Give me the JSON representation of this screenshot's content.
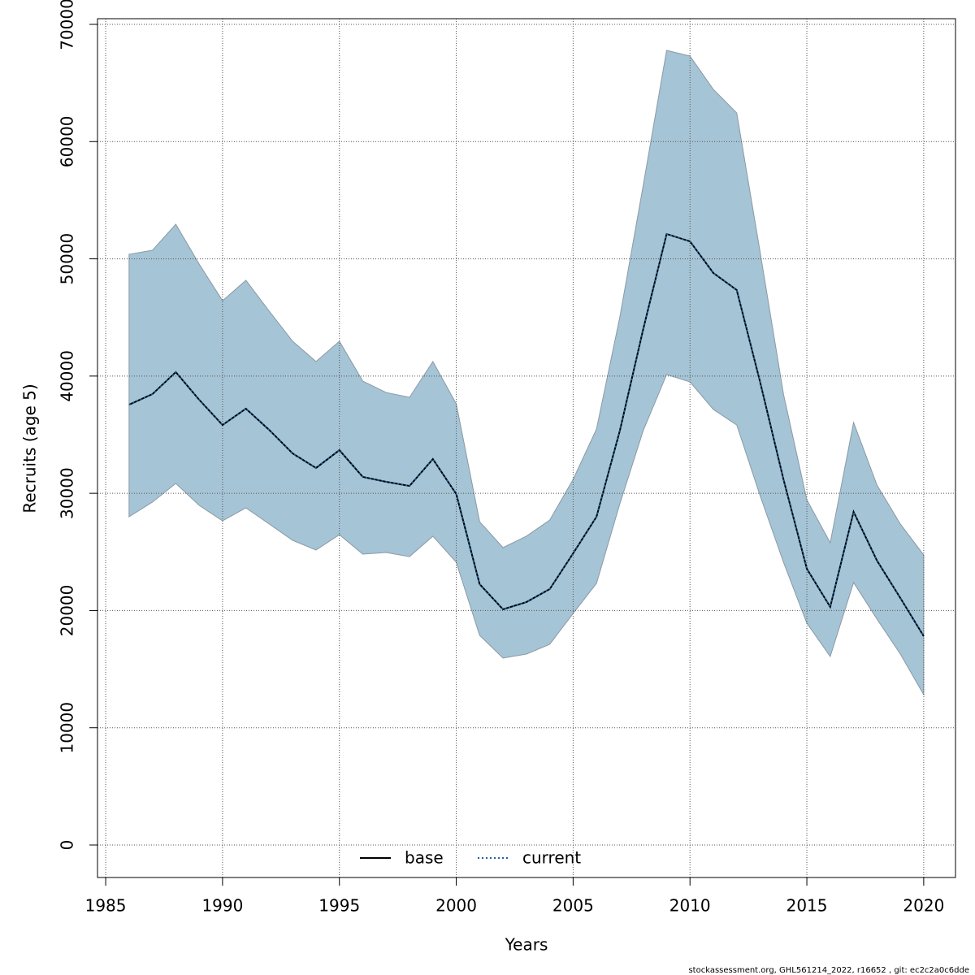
{
  "chart_data": {
    "type": "line",
    "xlabel": "Years",
    "ylabel": "Recruits (age 5)",
    "x": [
      1986,
      1987,
      1988,
      1989,
      1990,
      1991,
      1992,
      1993,
      1994,
      1995,
      1996,
      1997,
      1998,
      1999,
      2000,
      2001,
      2002,
      2003,
      2004,
      2005,
      2006,
      2007,
      2008,
      2009,
      2010,
      2011,
      2012,
      2013,
      2014,
      2015,
      2016,
      2017,
      2018,
      2019,
      2020
    ],
    "band": {
      "color": "#a5c4d5",
      "upper": [
        50390,
        50730,
        52950,
        49550,
        46430,
        48170,
        45530,
        42970,
        41240,
        42970,
        39570,
        38600,
        38190,
        41240,
        37630,
        27580,
        25370,
        26340,
        27720,
        31190,
        35480,
        45050,
        56280,
        67780,
        67300,
        64450,
        62450,
        50590,
        38460,
        29450,
        25780,
        36040,
        30700,
        27380,
        24740
      ],
      "lower": [
        28000,
        29250,
        30840,
        28970,
        27650,
        28760,
        27380,
        25990,
        25160,
        26470,
        24810,
        24950,
        24600,
        26340,
        24120,
        17880,
        15940,
        16290,
        17120,
        19750,
        22320,
        29110,
        35350,
        40130,
        39500,
        37150,
        35830,
        29800,
        24120,
        18920,
        16080,
        22390,
        19270,
        16290,
        12820
      ]
    },
    "series": [
      {
        "name": "base",
        "color": "#000000",
        "dash": "solid",
        "values": [
          37560,
          38460,
          40340,
          37980,
          35830,
          37220,
          35400,
          33400,
          32160,
          33680,
          31400,
          30980,
          30630,
          32920,
          29940,
          22250,
          20100,
          20720,
          21830,
          24880,
          28000,
          35350,
          44010,
          52120,
          51490,
          48790,
          47340,
          39500,
          31190,
          23560,
          20310,
          28420,
          24260,
          21070,
          17810
        ]
      },
      {
        "name": "current",
        "color": "#1f5f9e",
        "dash": "dotted",
        "values": [
          37560,
          38460,
          40340,
          37980,
          35830,
          37220,
          35400,
          33400,
          32160,
          33680,
          31400,
          30980,
          30630,
          32920,
          29940,
          22250,
          20100,
          20720,
          21830,
          24880,
          28000,
          35350,
          44010,
          52120,
          51490,
          48790,
          47340,
          39500,
          31190,
          23560,
          20310,
          28420,
          24260,
          21070,
          17810
        ]
      }
    ],
    "xlim": [
      1984.65,
      2021.36
    ],
    "xticks": [
      1985,
      1990,
      1995,
      2000,
      2005,
      2010,
      2015,
      2020
    ],
    "ylim": [
      -2772,
      70485
    ],
    "yticks": [
      0,
      10000,
      20000,
      30000,
      40000,
      50000,
      60000,
      70000
    ],
    "grid": true,
    "legend": "bottom",
    "footnote": "stockassessment.org, GHL561214_2022, r16652 , git: ec2c2a0c6dde"
  }
}
